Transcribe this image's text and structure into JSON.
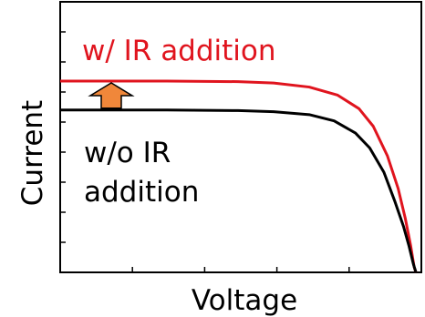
{
  "chart_data": {
    "type": "line",
    "title": "",
    "xlabel": "Voltage",
    "ylabel": "Current",
    "xlim": [
      0,
      1
    ],
    "ylim": [
      0,
      1
    ],
    "grid": false,
    "legend": "none",
    "series": [
      {
        "name": "w/ IR addition",
        "color": "#e0141e",
        "points": [
          [
            0,
            0.707
          ],
          [
            0.3,
            0.707
          ],
          [
            0.5,
            0.705
          ],
          [
            0.6,
            0.7
          ],
          [
            0.7,
            0.685
          ],
          [
            0.78,
            0.655
          ],
          [
            0.84,
            0.605
          ],
          [
            0.88,
            0.54
          ],
          [
            0.92,
            0.43
          ],
          [
            0.95,
            0.31
          ],
          [
            0.97,
            0.2
          ],
          [
            0.985,
            0.1
          ],
          [
            0.995,
            0.02
          ],
          [
            1.0,
            0
          ]
        ]
      },
      {
        "name": "w/o IR addition",
        "color": "#000000",
        "points": [
          [
            0,
            0.6
          ],
          [
            0.3,
            0.6
          ],
          [
            0.5,
            0.598
          ],
          [
            0.6,
            0.594
          ],
          [
            0.7,
            0.583
          ],
          [
            0.77,
            0.56
          ],
          [
            0.83,
            0.515
          ],
          [
            0.87,
            0.46
          ],
          [
            0.91,
            0.37
          ],
          [
            0.94,
            0.265
          ],
          [
            0.965,
            0.17
          ],
          [
            0.98,
            0.1
          ],
          [
            0.993,
            0.03
          ],
          [
            1.0,
            0
          ]
        ]
      }
    ],
    "annotations": [
      {
        "text": "w/ IR addition",
        "color": "#e0141e"
      },
      {
        "text_lines": [
          "w/o IR",
          "addition"
        ],
        "color": "#000000"
      }
    ],
    "arrow_color": "#f0873a"
  }
}
